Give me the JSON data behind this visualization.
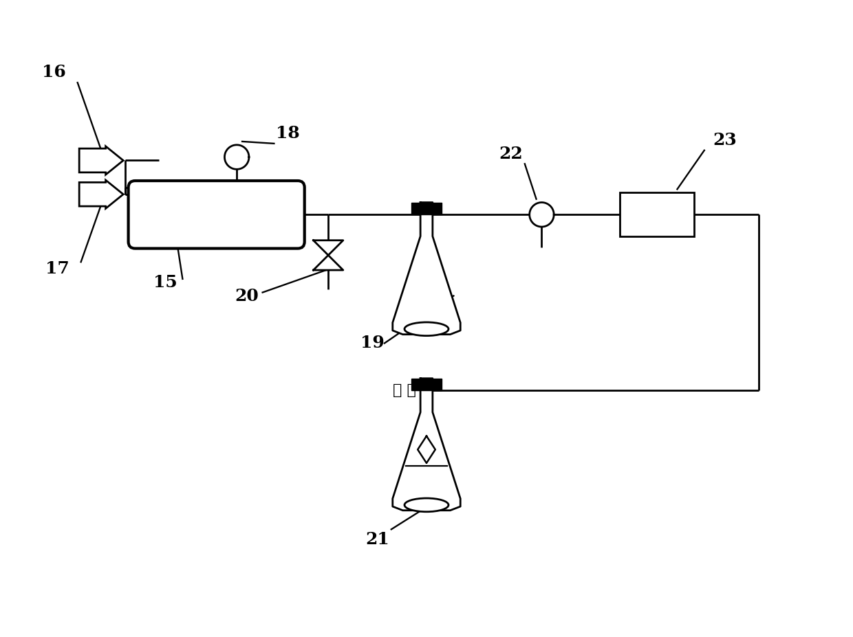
{
  "bg_color": "#ffffff",
  "line_color": "#000000",
  "lw": 2.0,
  "fig_width": 12.4,
  "fig_height": 9.27,
  "label_fontsize": 18,
  "chinese_fontsize": 16,
  "paikong_text": "排 空"
}
